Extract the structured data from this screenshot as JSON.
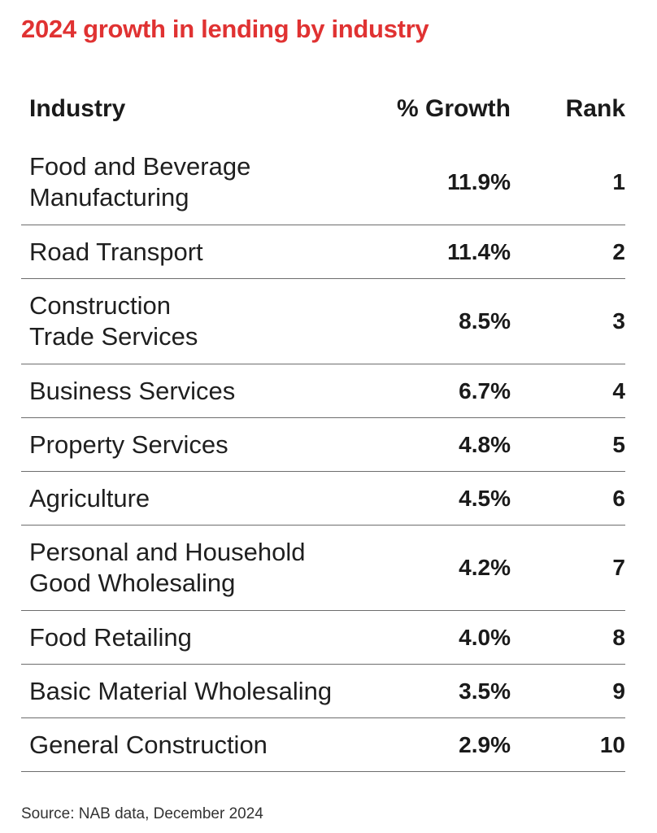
{
  "title": "2024 growth in lending by industry",
  "source": "Source: NAB data, December 2024",
  "colors": {
    "title": "#e03232",
    "text": "#1a1a1a",
    "rule": "#6d6d6d"
  },
  "chart_data": {
    "type": "table",
    "title": "2024 growth in lending by industry",
    "columns": [
      "Industry",
      "% Growth",
      "Rank"
    ],
    "rows": [
      {
        "industry": [
          "Food and Beverage",
          "Manufacturing"
        ],
        "growth": "11.9%",
        "growth_value": 11.9,
        "rank": "1"
      },
      {
        "industry": [
          "Road Transport"
        ],
        "growth": "11.4%",
        "growth_value": 11.4,
        "rank": "2"
      },
      {
        "industry": [
          "Construction",
          "Trade Services"
        ],
        "growth": "8.5%",
        "growth_value": 8.5,
        "rank": "3"
      },
      {
        "industry": [
          "Business Services"
        ],
        "growth": "6.7%",
        "growth_value": 6.7,
        "rank": "4"
      },
      {
        "industry": [
          "Property Services"
        ],
        "growth": "4.8%",
        "growth_value": 4.8,
        "rank": "5"
      },
      {
        "industry": [
          "Agriculture"
        ],
        "growth": "4.5%",
        "growth_value": 4.5,
        "rank": "6"
      },
      {
        "industry": [
          "Personal and Household",
          "Good Wholesaling"
        ],
        "growth": "4.2%",
        "growth_value": 4.2,
        "rank": "7"
      },
      {
        "industry": [
          "Food Retailing"
        ],
        "growth": "4.0%",
        "growth_value": 4.0,
        "rank": "8"
      },
      {
        "industry": [
          "Basic Material Wholesaling"
        ],
        "growth": "3.5%",
        "growth_value": 3.5,
        "rank": "9"
      },
      {
        "industry": [
          "General Construction"
        ],
        "growth": "2.9%",
        "growth_value": 2.9,
        "rank": "10"
      }
    ]
  }
}
